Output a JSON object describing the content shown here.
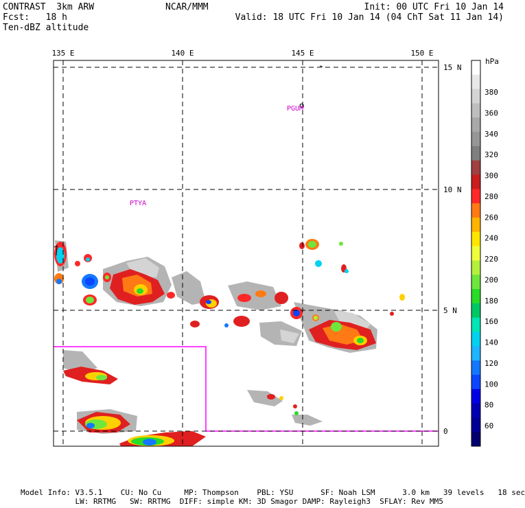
{
  "header": {
    "model_title": "CONTRAST  3km ARW",
    "forecast": "Fcst:   18 h",
    "field_name": "Ten-dBZ altitude",
    "organization": "NCAR/MMM",
    "init": "Init: 00 UTC Fri 10 Jan 14",
    "valid": "Valid: 18 UTC Fri 10 Jan 14 (04 ChT Sat 11 Jan 14)"
  },
  "map": {
    "lon_labels": [
      "135 E",
      "140 E",
      "145 E",
      "150 E"
    ],
    "lat_labels": [
      "15 N",
      "10 N",
      "5 N",
      "0"
    ],
    "station_labels": [
      "PGUM",
      "PTYA"
    ],
    "boundary_color": "#ff00ff",
    "gridline_style": "dashed"
  },
  "colorbar": {
    "unit": "hPa",
    "labels": [
      "380",
      "360",
      "340",
      "320",
      "300",
      "280",
      "260",
      "240",
      "220",
      "200",
      "180",
      "160",
      "140",
      "120",
      "100",
      "80",
      "60"
    ],
    "colors": [
      "#ffffff",
      "#e8e8e8",
      "#d4d4d4",
      "#bebebe",
      "#a8a8a8",
      "#969696",
      "#7f7f7f",
      "#a04040",
      "#c81e1e",
      "#ff2828",
      "#ff7a14",
      "#ffb400",
      "#ffe600",
      "#f0ff3c",
      "#b4f03c",
      "#6ee63c",
      "#28dc28",
      "#00c864",
      "#00e6b4",
      "#00d2f0",
      "#1eb4ff",
      "#1478ff",
      "#0a46ff",
      "#0000e6",
      "#0000b4",
      "#000096",
      "#00006e"
    ]
  },
  "footer": {
    "line1": "Model Info: V3.5.1    CU: No Cu     MP: Thompson    PBL: YSU      SF: Noah LSM      3.0 km   39 levels   18 sec",
    "line2": "            LW: RRTMG   SW: RRTMG  DIFF: simple KM: 3D Smagor DAMP: Rayleigh3  SFLAY: Rev MM5"
  }
}
